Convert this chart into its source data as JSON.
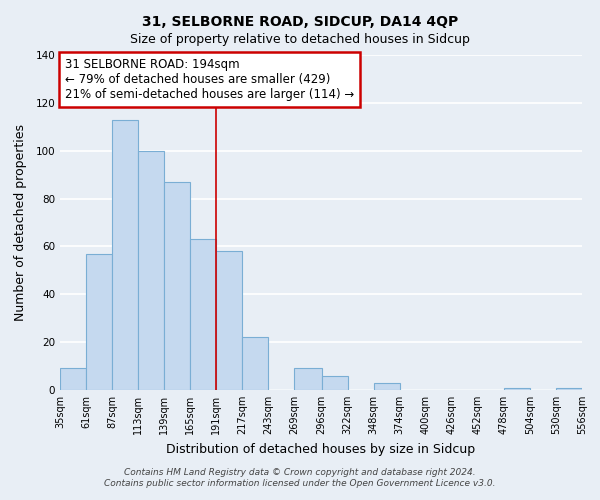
{
  "title": "31, SELBORNE ROAD, SIDCUP, DA14 4QP",
  "subtitle": "Size of property relative to detached houses in Sidcup",
  "xlabel": "Distribution of detached houses by size in Sidcup",
  "ylabel": "Number of detached properties",
  "bar_left_edges": [
    35,
    61,
    87,
    113,
    139,
    165,
    191,
    217,
    243,
    269,
    296,
    322,
    348,
    374,
    400,
    426,
    452,
    478,
    504,
    530
  ],
  "bar_heights": [
    9,
    57,
    113,
    100,
    87,
    63,
    58,
    22,
    0,
    9,
    6,
    0,
    3,
    0,
    0,
    0,
    0,
    1,
    0,
    1
  ],
  "bar_widths": [
    26,
    26,
    26,
    26,
    26,
    26,
    26,
    26,
    26,
    27,
    26,
    26,
    26,
    26,
    26,
    26,
    26,
    26,
    26,
    26
  ],
  "tick_labels": [
    "35sqm",
    "61sqm",
    "87sqm",
    "113sqm",
    "139sqm",
    "165sqm",
    "191sqm",
    "217sqm",
    "243sqm",
    "269sqm",
    "296sqm",
    "322sqm",
    "348sqm",
    "374sqm",
    "400sqm",
    "426sqm",
    "452sqm",
    "478sqm",
    "504sqm",
    "530sqm",
    "556sqm"
  ],
  "ylim": [
    0,
    140
  ],
  "yticks": [
    0,
    20,
    40,
    60,
    80,
    100,
    120,
    140
  ],
  "bar_color": "#c5d9ef",
  "bar_edge_color": "#7aaed4",
  "annotation_box_text": "31 SELBORNE ROAD: 194sqm\n← 79% of detached houses are smaller (429)\n21% of semi-detached houses are larger (114) →",
  "annotation_box_color": "#ffffff",
  "annotation_box_edge_color": "#cc0000",
  "vline_x": 191,
  "vline_color": "#cc0000",
  "footer_line1": "Contains HM Land Registry data © Crown copyright and database right 2024.",
  "footer_line2": "Contains public sector information licensed under the Open Government Licence v3.0.",
  "bg_color": "#e8eef5",
  "grid_color": "#ffffff",
  "title_fontsize": 10,
  "subtitle_fontsize": 9,
  "axis_label_fontsize": 9,
  "tick_fontsize": 7,
  "annotation_fontsize": 8.5,
  "footer_fontsize": 6.5
}
